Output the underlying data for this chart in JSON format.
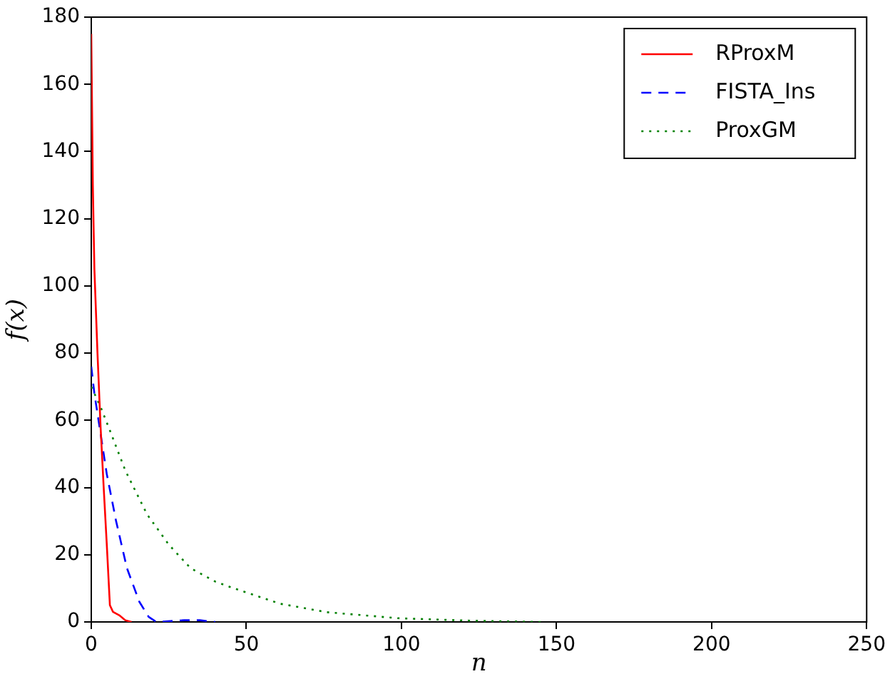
{
  "chart_data": {
    "type": "line",
    "xlabel": "n",
    "ylabel": "f(x)",
    "xlim": [
      0,
      250
    ],
    "xticks": [
      0,
      50,
      100,
      150,
      200,
      250
    ],
    "ylim": [
      0,
      180
    ],
    "yticks": [
      0,
      20,
      40,
      60,
      80,
      100,
      120,
      140,
      160,
      180
    ],
    "grid": false,
    "legend": "top right",
    "marker": "none",
    "series": [
      {
        "name": "RProxM",
        "color": "#ff0000",
        "line_style": "solid",
        "x": [
          0,
          0.5,
          1,
          2,
          3,
          4,
          5,
          6,
          7,
          9,
          11,
          13
        ],
        "values": [
          175,
          130,
          105,
          80,
          58,
          40,
          23,
          5,
          3,
          2,
          0.5,
          0
        ]
      },
      {
        "name": "FISTA_Ins",
        "color": "#0000ff",
        "line_style": "dashed",
        "x": [
          0,
          1,
          3,
          5,
          8,
          11.5,
          15.5,
          18.5,
          21,
          30,
          35,
          40
        ],
        "values": [
          76,
          68,
          56,
          44,
          30,
          16,
          6,
          1.5,
          0,
          0.5,
          0.5,
          0
        ]
      },
      {
        "name": "ProxGM",
        "color": "#008000",
        "line_style": "dotted",
        "x": [
          0,
          3,
          6,
          11,
          18,
          25,
          32,
          40,
          46,
          61,
          76,
          99,
          121,
          145
        ],
        "values": [
          70,
          64,
          57,
          45,
          32,
          23,
          16,
          12,
          10,
          5.4,
          2.9,
          1.1,
          0.4,
          0
        ]
      }
    ]
  }
}
